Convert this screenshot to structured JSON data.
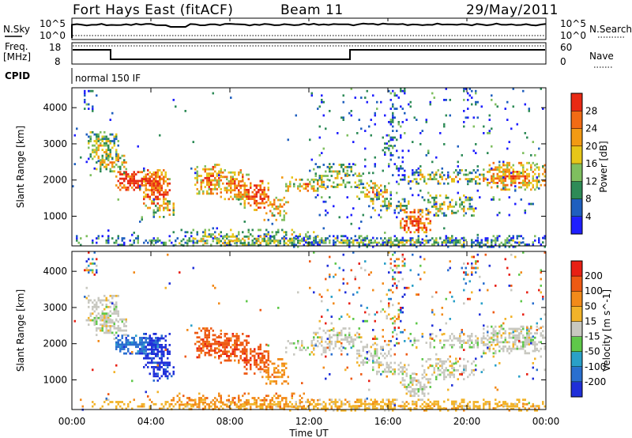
{
  "header": {
    "station": "Fort Hays East (fitACF)",
    "beam": "Beam 11",
    "date": "29/May/2011"
  },
  "status_panels": {
    "nsky_label": "N.Sky",
    "nsky_ticks": [
      "10^5",
      "10^0"
    ],
    "nsearch_label": "N.Search",
    "nsearch_ticks": [
      "10^5",
      "10^0"
    ],
    "freq_label_line1": "Freq.",
    "freq_label_line2": "[MHz]",
    "freq_ticks": [
      "18",
      "8"
    ],
    "nave_label": "Nave",
    "nave_ticks": [
      "60",
      "0"
    ],
    "cpid_label": "CPID",
    "cpid_value": "normal 150 IF"
  },
  "chart_data": [
    {
      "type": "heatmap",
      "name": "power",
      "ylabel": "Slant Range [km]",
      "yticks": [
        1000,
        2000,
        3000,
        4000
      ],
      "ylim": [
        180,
        4550
      ],
      "xlim_hours": [
        0,
        24
      ],
      "colorbar_label": "Power [dB]",
      "colorbar_ticks": [
        "4",
        "8",
        "12",
        "16",
        "20",
        "24",
        "28"
      ],
      "colors": [
        "#1f1fff",
        "#1f5fbf",
        "#2e8b57",
        "#7fbf5f",
        "#e6c619",
        "#f29a14",
        "#f26b14",
        "#e82a14"
      ]
    },
    {
      "type": "heatmap",
      "name": "velocity",
      "ylabel": "Slant Range [km]",
      "yticks": [
        1000,
        2000,
        3000,
        4000
      ],
      "ylim": [
        180,
        4550
      ],
      "xlim_hours": [
        0,
        24
      ],
      "colorbar_label": "Velocity [m s^-1]",
      "colorbar_ticks": [
        "200",
        "100",
        "50",
        "15",
        "-15",
        "-50",
        "-100",
        "-200"
      ],
      "colors": [
        "#1f2fd9",
        "#2a6fcf",
        "#2aa0c8",
        "#5fc84a",
        "#c8c8c0",
        "#f2b32a",
        "#f28a1a",
        "#ee5a14",
        "#e82014"
      ]
    }
  ],
  "x_axis": {
    "ticks": [
      "00:00",
      "04:00",
      "08:00",
      "12:00",
      "16:00",
      "20:00",
      "00:00"
    ],
    "label": "Time UT"
  }
}
